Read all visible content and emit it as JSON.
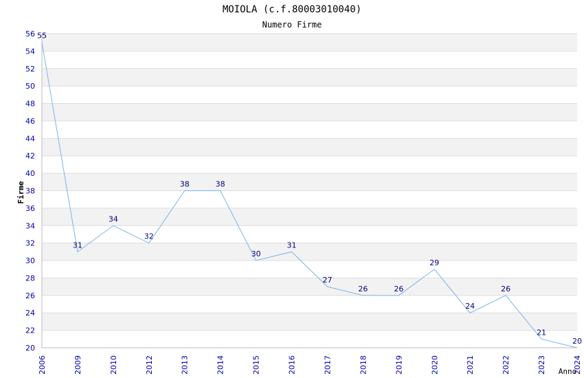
{
  "chart_data": {
    "type": "line",
    "title": "MOIOLA (c.f.80003010040)",
    "subtitle": "Numero Firme",
    "xlabel": "Anno",
    "ylabel": "Firme",
    "categories": [
      "2006",
      "2009",
      "2010",
      "2012",
      "2013",
      "2014",
      "2015",
      "2016",
      "2017",
      "2018",
      "2019",
      "2020",
      "2021",
      "2022",
      "2023",
      "2024"
    ],
    "values": [
      55,
      31,
      34,
      32,
      38,
      38,
      30,
      31,
      27,
      26,
      26,
      29,
      24,
      26,
      21,
      20
    ],
    "y_ticks": [
      20,
      22,
      24,
      26,
      28,
      30,
      32,
      34,
      36,
      38,
      40,
      42,
      44,
      46,
      48,
      50,
      52,
      54,
      56
    ],
    "ylim": [
      20,
      56
    ],
    "grid": true
  },
  "colors": {
    "line": "#7ab4e8",
    "tick_text": "#0000aa",
    "data_label": "#000080",
    "band_a": "#f2f2f2",
    "band_b": "#ffffff",
    "grid_line": "#dddddd",
    "axis": "#bbbbbb"
  }
}
